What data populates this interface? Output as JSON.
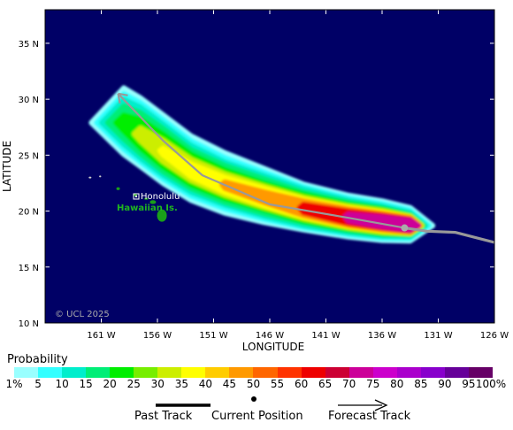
{
  "map": {
    "lat_labels": [
      "35 N",
      "30 N",
      "25 N",
      "20 N",
      "15 N",
      "10 N"
    ],
    "lat_values": [
      35,
      30,
      25,
      20,
      15,
      10
    ],
    "lon_labels": [
      "161 W",
      "156 W",
      "151 W",
      "146 W",
      "141 W",
      "136 W",
      "131 W",
      "126 W"
    ],
    "lon_values": [
      -161,
      -156,
      -151,
      -146,
      -141,
      -136,
      -131,
      -126
    ],
    "xlabel": "LONGITUDE",
    "ylabel": "LATITUDE",
    "city_label": "Honolulu",
    "islands_label": "Hawaiian Is.",
    "copyright": "© UCL 2025",
    "ocean_color": "#000066",
    "land_color": "#1a9e1a",
    "track_color": "#999999",
    "past_track": [
      [
        -129.5,
        18.1
      ],
      [
        -126,
        17.2
      ]
    ],
    "current_position": [
      -134.0,
      18.5
    ],
    "forecast_track": [
      [
        -134.0,
        18.5
      ],
      [
        -139.0,
        19.4
      ],
      [
        -146.0,
        20.6
      ],
      [
        -152.0,
        23.2
      ],
      [
        -155.5,
        26.3
      ],
      [
        -159.5,
        30.5
      ]
    ],
    "track_lon": [
      -159.5,
      -155.5,
      -152,
      -146,
      -139,
      -134,
      -129.5,
      -126
    ],
    "track_lat": [
      30.5,
      26.3,
      23.2,
      20.6,
      19.4,
      18.5,
      18.1,
      17.2
    ],
    "probability_levels": [
      1,
      5,
      10,
      15,
      20,
      25,
      30,
      35,
      40,
      45,
      50,
      55,
      60,
      65,
      70,
      75,
      80,
      85,
      90,
      95,
      100
    ]
  },
  "legend": {
    "title": "Probability",
    "tick_labels": [
      "1%",
      "5",
      "10",
      "15",
      "20",
      "25",
      "30",
      "35",
      "40",
      "45",
      "50",
      "55",
      "60",
      "65",
      "70",
      "75",
      "80",
      "85",
      "90",
      "95",
      "100%"
    ],
    "colors": [
      "#99ffff",
      "#33ffff",
      "#00eecc",
      "#00ee77",
      "#00ee00",
      "#77ee00",
      "#ccee00",
      "#ffff00",
      "#ffcc00",
      "#ff9900",
      "#ff6600",
      "#ff3300",
      "#ee0000",
      "#cc0033",
      "#cc0099",
      "#cc00cc",
      "#aa00cc",
      "#8800cc",
      "#660099",
      "#660066"
    ],
    "past_track_label": "Past Track",
    "current_position_label": "Current Position",
    "forecast_track_label": "Forecast Track"
  }
}
